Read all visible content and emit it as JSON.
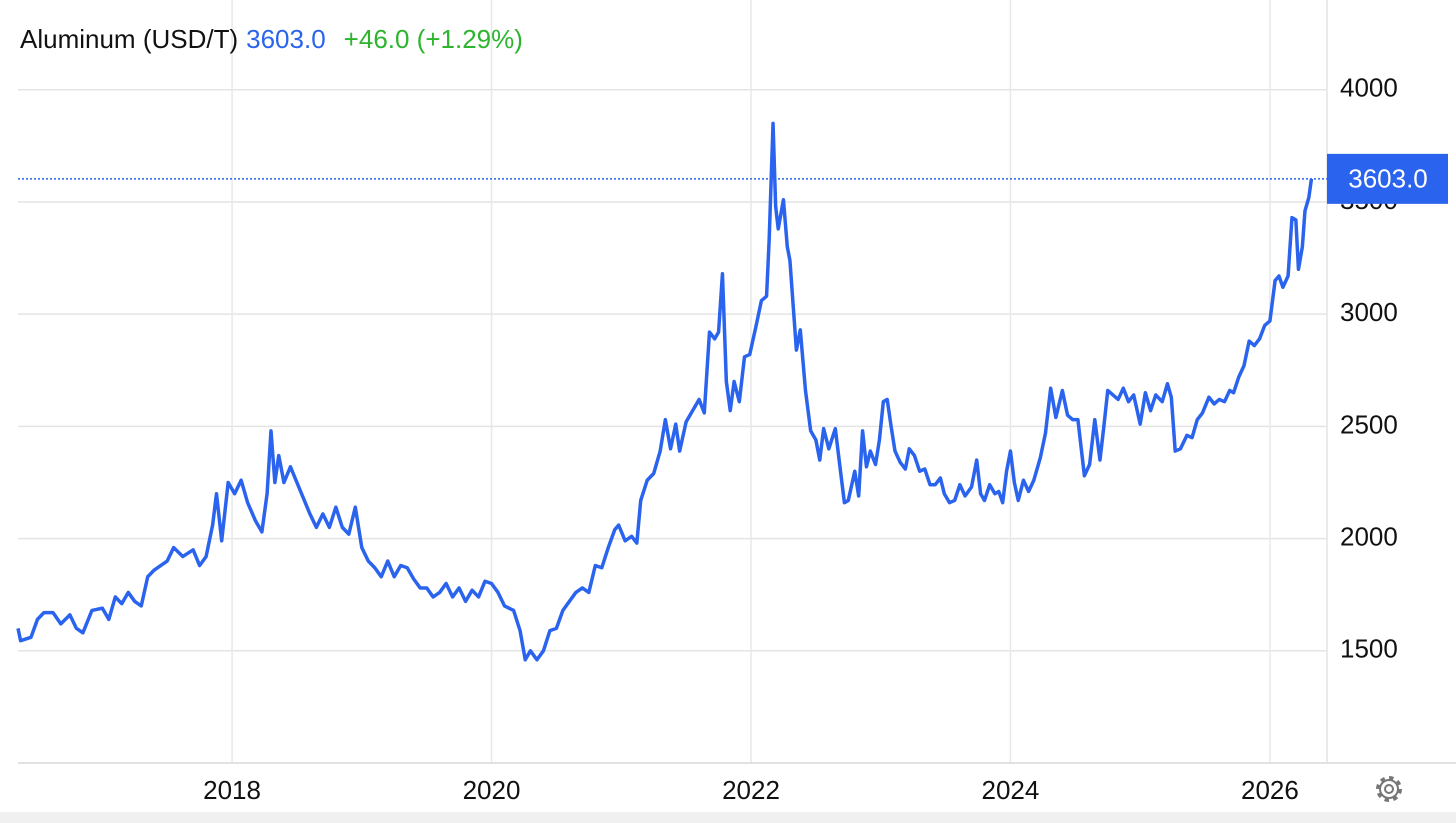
{
  "chart_data": {
    "type": "line",
    "title": "Aluminum (USD/T)",
    "last": {
      "value": 3603,
      "label": "3603.0"
    },
    "change_label": "+46.0 (+1.29%)",
    "color": "#2a63ee",
    "x": [
      2016.35,
      2016.37,
      2016.45,
      2016.5,
      2016.55,
      2016.62,
      2016.68,
      2016.75,
      2016.8,
      2016.85,
      2016.92,
      2017.0,
      2017.05,
      2017.1,
      2017.15,
      2017.2,
      2017.25,
      2017.3,
      2017.35,
      2017.4,
      2017.45,
      2017.5,
      2017.55,
      2017.62,
      2017.7,
      2017.75,
      2017.8,
      2017.85,
      2017.88,
      2017.92,
      2017.97,
      2018.02,
      2018.07,
      2018.12,
      2018.18,
      2018.23,
      2018.27,
      2018.3,
      2018.33,
      2018.36,
      2018.4,
      2018.45,
      2018.5,
      2018.6,
      2018.65,
      2018.7,
      2018.75,
      2018.8,
      2018.85,
      2018.9,
      2018.95,
      2019.0,
      2019.05,
      2019.1,
      2019.15,
      2019.2,
      2019.25,
      2019.3,
      2019.35,
      2019.4,
      2019.45,
      2019.5,
      2019.55,
      2019.6,
      2019.65,
      2019.7,
      2019.75,
      2019.8,
      2019.85,
      2019.9,
      2019.95,
      2020.0,
      2020.05,
      2020.1,
      2020.17,
      2020.22,
      2020.26,
      2020.3,
      2020.35,
      2020.4,
      2020.45,
      2020.5,
      2020.55,
      2020.6,
      2020.65,
      2020.7,
      2020.75,
      2020.8,
      2020.85,
      2020.9,
      2020.95,
      2020.98,
      2021.03,
      2021.08,
      2021.12,
      2021.15,
      2021.2,
      2021.25,
      2021.3,
      2021.34,
      2021.38,
      2021.42,
      2021.45,
      2021.5,
      2021.55,
      2021.6,
      2021.64,
      2021.68,
      2021.72,
      2021.75,
      2021.78,
      2021.81,
      2021.84,
      2021.87,
      2021.91,
      2021.95,
      2021.99,
      2022.04,
      2022.08,
      2022.12,
      2022.14,
      2022.17,
      2022.19,
      2022.21,
      2022.25,
      2022.28,
      2022.3,
      2022.35,
      2022.38,
      2022.42,
      2022.46,
      2022.5,
      2022.53,
      2022.56,
      2022.6,
      2022.65,
      2022.69,
      2022.72,
      2022.75,
      2022.8,
      2022.83,
      2022.86,
      2022.89,
      2022.92,
      2022.96,
      2022.99,
      2023.02,
      2023.05,
      2023.08,
      2023.11,
      2023.15,
      2023.19,
      2023.22,
      2023.26,
      2023.3,
      2023.34,
      2023.38,
      2023.42,
      2023.46,
      2023.49,
      2023.53,
      2023.57,
      2023.61,
      2023.65,
      2023.7,
      2023.74,
      2023.77,
      2023.8,
      2023.84,
      2023.88,
      2023.91,
      2023.94,
      2023.97,
      2024.0,
      2024.03,
      2024.06,
      2024.1,
      2024.14,
      2024.18,
      2024.23,
      2024.27,
      2024.31,
      2024.35,
      2024.4,
      2024.44,
      2024.48,
      2024.52,
      2024.57,
      2024.61,
      2024.65,
      2024.69,
      2024.72,
      2024.75,
      2024.79,
      2024.83,
      2024.87,
      2024.91,
      2024.95,
      2025.0,
      2025.04,
      2025.08,
      2025.12,
      2025.17,
      2025.21,
      2025.24,
      2025.27,
      2025.31,
      2025.36,
      2025.4,
      2025.44,
      2025.48,
      2025.53,
      2025.57,
      2025.61,
      2025.65,
      2025.69,
      2025.72,
      2025.76,
      2025.8,
      2025.84,
      2025.88,
      2025.92,
      2025.96,
      2026.0,
      2026.04,
      2026.07,
      2026.1,
      2026.14,
      2026.17,
      2026.2,
      2026.22,
      2026.25,
      2026.27,
      2026.3,
      2026.32
    ],
    "values": [
      1600,
      1545,
      1560,
      1640,
      1670,
      1670,
      1620,
      1660,
      1600,
      1580,
      1680,
      1690,
      1640,
      1740,
      1710,
      1760,
      1720,
      1700,
      1830,
      1860,
      1880,
      1900,
      1960,
      1920,
      1950,
      1880,
      1920,
      2060,
      2200,
      1990,
      2250,
      2200,
      2260,
      2160,
      2080,
      2030,
      2200,
      2480,
      2250,
      2370,
      2250,
      2320,
      2250,
      2110,
      2050,
      2110,
      2050,
      2140,
      2050,
      2020,
      2140,
      1960,
      1900,
      1870,
      1830,
      1900,
      1830,
      1880,
      1870,
      1820,
      1780,
      1780,
      1740,
      1760,
      1800,
      1740,
      1780,
      1720,
      1770,
      1740,
      1810,
      1800,
      1760,
      1700,
      1680,
      1590,
      1460,
      1500,
      1460,
      1500,
      1590,
      1600,
      1680,
      1720,
      1760,
      1780,
      1760,
      1880,
      1870,
      1960,
      2040,
      2060,
      1990,
      2010,
      1980,
      2170,
      2260,
      2290,
      2390,
      2530,
      2400,
      2510,
      2390,
      2520,
      2570,
      2620,
      2560,
      2920,
      2890,
      2920,
      3180,
      2700,
      2570,
      2700,
      2610,
      2810,
      2820,
      2950,
      3060,
      3080,
      3330,
      3850,
      3480,
      3380,
      3510,
      3300,
      3240,
      2840,
      2930,
      2660,
      2480,
      2440,
      2350,
      2490,
      2400,
      2490,
      2300,
      2160,
      2170,
      2300,
      2190,
      2480,
      2320,
      2390,
      2330,
      2440,
      2610,
      2620,
      2500,
      2390,
      2340,
      2310,
      2400,
      2370,
      2300,
      2310,
      2240,
      2240,
      2270,
      2200,
      2160,
      2170,
      2240,
      2190,
      2230,
      2350,
      2200,
      2170,
      2240,
      2200,
      2210,
      2160,
      2300,
      2390,
      2250,
      2170,
      2260,
      2210,
      2260,
      2360,
      2470,
      2670,
      2540,
      2660,
      2550,
      2530,
      2530,
      2280,
      2330,
      2530,
      2350,
      2500,
      2660,
      2640,
      2620,
      2670,
      2610,
      2640,
      2510,
      2650,
      2570,
      2640,
      2610,
      2690,
      2630,
      2390,
      2400,
      2460,
      2450,
      2530,
      2560,
      2630,
      2600,
      2620,
      2610,
      2660,
      2650,
      2720,
      2770,
      2880,
      2860,
      2890,
      2950,
      2970,
      3150,
      3170,
      3120,
      3170,
      3430,
      3420,
      3200,
      3300,
      3460,
      3520,
      3603
    ],
    "xlim": [
      2016.35,
      2026.44
    ],
    "xticks": [
      2018,
      2020,
      2022,
      2024,
      2026
    ],
    "ylim": [
      1000,
      4400
    ],
    "yticks": [
      1500,
      2000,
      2500,
      3000,
      3500,
      4000
    ],
    "grid": true
  }
}
